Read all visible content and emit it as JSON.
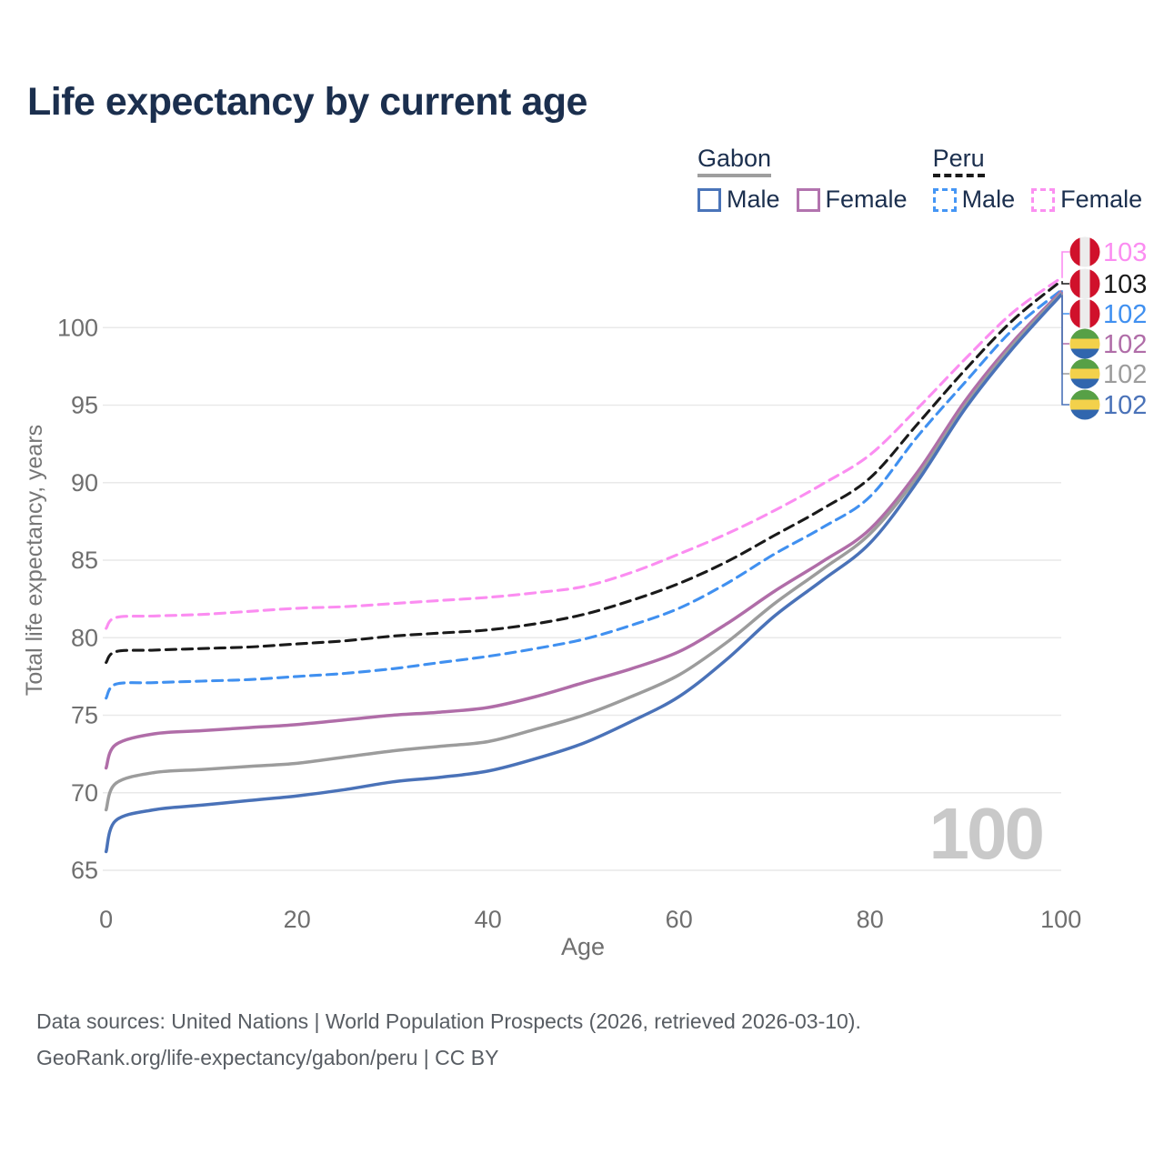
{
  "title": "Life expectancy by current age",
  "legend": {
    "groups": [
      {
        "id": "gabon",
        "label": "Gabon",
        "line_style": "solid",
        "underline_color": "#9e9e9e",
        "items": [
          {
            "id": "gabon-male",
            "label": "Male",
            "color": "#4a74b9"
          },
          {
            "id": "gabon-female",
            "label": "Female",
            "color": "#b273ae"
          }
        ]
      },
      {
        "id": "peru",
        "label": "Peru",
        "line_style": "dashed",
        "underline_color": "#1a1a1a",
        "items": [
          {
            "id": "peru-male",
            "label": "Male",
            "color": "#4596f5"
          },
          {
            "id": "peru-female",
            "label": "Female",
            "color": "#fb90f1"
          }
        ]
      }
    ]
  },
  "chart_data": {
    "type": "line",
    "title": "Life expectancy by current age",
    "xlabel": "Age",
    "ylabel": "Total life expectancy, years",
    "xlim": [
      0,
      100
    ],
    "ylim": [
      65,
      103.5
    ],
    "xticks": [
      0,
      20,
      40,
      60,
      80,
      100
    ],
    "yticks": [
      65,
      70,
      75,
      80,
      85,
      90,
      95,
      100
    ],
    "grid": "horizontal-only",
    "legend_position": "top-right",
    "watermark": "100",
    "x": [
      0,
      1,
      5,
      10,
      15,
      20,
      25,
      30,
      35,
      40,
      45,
      50,
      55,
      60,
      65,
      70,
      75,
      80,
      85,
      90,
      95,
      100
    ],
    "series": [
      {
        "id": "peru-female",
        "name": "Peru Female",
        "country": "Peru",
        "sex": "Female",
        "dash": true,
        "color": "#fb8df1",
        "flag": "peru",
        "end_label": "103",
        "values": [
          80.6,
          81.3,
          81.4,
          81.5,
          81.7,
          81.9,
          82.0,
          82.2,
          82.4,
          82.6,
          82.9,
          83.3,
          84.2,
          85.4,
          86.7,
          88.2,
          89.9,
          91.8,
          94.8,
          98.0,
          101.0,
          103.2
        ]
      },
      {
        "id": "peru-both",
        "name": "Peru Both sexes",
        "country": "Peru",
        "sex": "Both",
        "dash": true,
        "color": "#1a1a1a",
        "flag": "peru",
        "end_label": "103",
        "values": [
          78.4,
          79.1,
          79.2,
          79.3,
          79.4,
          79.6,
          79.8,
          80.1,
          80.3,
          80.5,
          80.9,
          81.5,
          82.4,
          83.5,
          84.9,
          86.6,
          88.3,
          90.3,
          93.8,
          97.3,
          100.5,
          103.0
        ]
      },
      {
        "id": "peru-male",
        "name": "Peru Male",
        "country": "Peru",
        "sex": "Male",
        "dash": true,
        "color": "#4090f0",
        "flag": "peru",
        "end_label": "102",
        "values": [
          76.1,
          77.0,
          77.1,
          77.2,
          77.3,
          77.5,
          77.7,
          78.0,
          78.4,
          78.8,
          79.3,
          79.9,
          80.8,
          81.9,
          83.5,
          85.4,
          87.1,
          89.1,
          93.0,
          96.5,
          99.9,
          102.4
        ]
      },
      {
        "id": "gabon-female",
        "name": "Gabon Female",
        "country": "Gabon",
        "sex": "Female",
        "dash": false,
        "color": "#b06da8",
        "flag": "gabon",
        "end_label": "102",
        "values": [
          71.6,
          73.1,
          73.8,
          74.0,
          74.2,
          74.4,
          74.7,
          75.0,
          75.2,
          75.5,
          76.2,
          77.1,
          78.0,
          79.1,
          80.9,
          83.0,
          84.9,
          87.0,
          90.7,
          95.3,
          99.1,
          102.3
        ]
      },
      {
        "id": "gabon-both",
        "name": "Gabon Both sexes",
        "country": "Gabon",
        "sex": "Both",
        "dash": false,
        "color": "#9c9c9c",
        "flag": "gabon",
        "end_label": "102",
        "values": [
          68.9,
          70.6,
          71.3,
          71.5,
          71.7,
          71.9,
          72.3,
          72.7,
          73.0,
          73.3,
          74.1,
          75.0,
          76.2,
          77.6,
          79.7,
          82.2,
          84.4,
          86.7,
          90.4,
          95.0,
          98.9,
          102.2
        ]
      },
      {
        "id": "gabon-male",
        "name": "Gabon Male",
        "country": "Gabon",
        "sex": "Male",
        "dash": false,
        "color": "#4a72b8",
        "flag": "gabon",
        "end_label": "102",
        "values": [
          66.2,
          68.2,
          68.9,
          69.2,
          69.5,
          69.8,
          70.2,
          70.7,
          71.0,
          71.4,
          72.2,
          73.2,
          74.6,
          76.2,
          78.6,
          81.4,
          83.7,
          86.1,
          90.1,
          94.8,
          98.7,
          102.1
        ]
      }
    ],
    "flags": {
      "peru": {
        "stripes": "vertical",
        "colors": [
          "#d0112b",
          "#ececec",
          "#d0112b"
        ]
      },
      "gabon": {
        "stripes": "horizontal",
        "colors": [
          "#57a046",
          "#f3d14b",
          "#3166ae"
        ]
      }
    }
  },
  "footer": {
    "line1": "Data sources: United Nations | World Population Prospects (2026, retrieved 2026-03-10).",
    "line2": "GeoRank.org/life-expectancy/gabon/peru | CC BY"
  }
}
